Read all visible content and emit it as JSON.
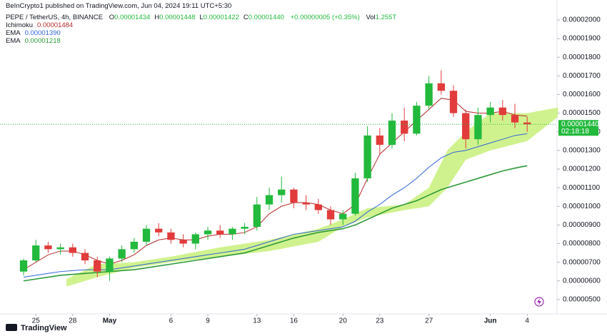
{
  "chart_data": {
    "type": "candlestick",
    "publisher": "BeInCrypto1 published on TradingView.com, Jun 04, 2024 19:11 UTC+5:30",
    "symbol": "PEPE / TetherUS, 4h, BINANCE",
    "ohlc_legend": [
      {
        "label": "O",
        "value": "0.00001434"
      },
      {
        "label": "H",
        "value": "0.00001448"
      },
      {
        "label": "L",
        "value": "0.00001422"
      },
      {
        "label": "C",
        "value": "0.00001440"
      }
    ],
    "change": "+0.00000005 (+0.35%)",
    "volume_label": "Vol",
    "volume": "1.255T",
    "price_label": "0.00001440",
    "countdown": "02:18:18",
    "footer": "TradingView",
    "up_color": "#22b93c",
    "down_color": "#e23b3b",
    "x": [
      0,
      1,
      2,
      3,
      4,
      5,
      6,
      7,
      8,
      9,
      10,
      11,
      12,
      13,
      14,
      15,
      16,
      17,
      18,
      19,
      20,
      21,
      22,
      23,
      24,
      25,
      26,
      27,
      28,
      29,
      30,
      31,
      32,
      33,
      34,
      35,
      36,
      37,
      38,
      39,
      40,
      41
    ],
    "open": [
      6.5e-06,
      7.1e-06,
      7.9e-06,
      7.7e-06,
      7.8e-06,
      7.5e-06,
      7.1e-06,
      6.5e-06,
      7.2e-06,
      7.7e-06,
      8.1e-06,
      8.8e-06,
      8.6e-06,
      8.2e-06,
      8e-06,
      8.5e-06,
      8.7e-06,
      8.5e-06,
      8.8e-06,
      8.9e-06,
      1.01e-05,
      1.06e-05,
      1.09e-05,
      1.02e-05,
      1.01e-05,
      9.8e-06,
      9.3e-06,
      9.6e-06,
      1.15e-05,
      1.38e-05,
      1.33e-05,
      1.46e-05,
      1.39e-05,
      1.54e-05,
      1.66e-05,
      1.62e-05,
      1.5e-05,
      1.36e-05,
      1.49e-05,
      1.53e-05,
      1.49e-05,
      1.45e-05
    ],
    "high": [
      7.2e-06,
      8.2e-06,
      8.1e-06,
      8e-06,
      8e-06,
      7.7e-06,
      7.3e-06,
      7.3e-06,
      7.9e-06,
      8.3e-06,
      9e-06,
      9.1e-06,
      8.8e-06,
      8.5e-06,
      8.6e-06,
      8.9e-06,
      9e-06,
      8.9e-06,
      9.1e-06,
      1.05e-05,
      1.1e-05,
      1.16e-05,
      1.1e-05,
      1.06e-05,
      1.04e-05,
      1e-05,
      9.8e-06,
      1.18e-05,
      1.43e-05,
      1.42e-05,
      1.5e-05,
      1.53e-05,
      1.56e-05,
      1.7e-05,
      1.73e-05,
      1.65e-05,
      1.52e-05,
      1.53e-05,
      1.56e-05,
      1.57e-05,
      1.55e-05,
      1.48e-05
    ],
    "low": [
      6.3e-06,
      7e-06,
      7.5e-06,
      7.4e-06,
      7.3e-06,
      6.9e-06,
      6.2e-06,
      6e-06,
      7e-06,
      7.5e-06,
      7.9e-06,
      8.4e-06,
      8e-06,
      7.8e-06,
      7.7e-06,
      8.2e-06,
      8.3e-06,
      8.2e-06,
      8.5e-06,
      8.7e-06,
      9.8e-06,
      1.02e-05,
      9.9e-06,
      9.8e-06,
      9.6e-06,
      9e-06,
      9e-06,
      9.5e-06,
      1.13e-05,
      1.28e-05,
      1.31e-05,
      1.35e-05,
      1.38e-05,
      1.52e-05,
      1.6e-05,
      1.48e-05,
      1.31e-05,
      1.33e-05,
      1.45e-05,
      1.46e-05,
      1.42e-05,
      1.4e-05
    ],
    "close": [
      7.1e-06,
      7.9e-06,
      7.7e-06,
      7.8e-06,
      7.5e-06,
      7.1e-06,
      6.5e-06,
      7.2e-06,
      7.7e-06,
      8.1e-06,
      8.8e-06,
      8.6e-06,
      8.2e-06,
      8e-06,
      8.5e-06,
      8.7e-06,
      8.5e-06,
      8.8e-06,
      8.9e-06,
      1.01e-05,
      1.06e-05,
      1.09e-05,
      1.02e-05,
      1.01e-05,
      9.8e-06,
      9.3e-06,
      9.6e-06,
      1.15e-05,
      1.38e-05,
      1.33e-05,
      1.46e-05,
      1.39e-05,
      1.54e-05,
      1.66e-05,
      1.62e-05,
      1.5e-05,
      1.36e-05,
      1.49e-05,
      1.53e-05,
      1.49e-05,
      1.45e-05,
      1.44e-05
    ],
    "series": [
      {
        "name": "Ichimoku",
        "legend_value": "0.00001484",
        "color": "#b52a2a",
        "values": [
          6.6e-06,
          7e-06,
          7.4e-06,
          7.6e-06,
          7.6e-06,
          7.4e-06,
          7.1e-06,
          6.9e-06,
          7.1e-06,
          7.4e-06,
          7.9e-06,
          8.2e-06,
          8.3e-06,
          8.2e-06,
          8.2e-06,
          8.4e-06,
          8.5e-06,
          8.5e-06,
          8.6e-06,
          8.9e-06,
          9.6e-06,
          1e-05,
          1.02e-05,
          1.02e-05,
          1.01e-05,
          9.8e-06,
          9.6e-06,
          1.01e-05,
          1.15e-05,
          1.28e-05,
          1.34e-05,
          1.4e-05,
          1.46e-05,
          1.52e-05,
          1.58e-05,
          1.57e-05,
          1.51e-05,
          1.5e-05,
          1.5e-05,
          1.51e-05,
          1.49e-05,
          1.484e-05
        ]
      },
      {
        "name": "EMA",
        "legend_value": "0.00001390",
        "color": "#2f63d6",
        "values": [
          6.2e-06,
          6.3e-06,
          6.4e-06,
          6.5e-06,
          6.55e-06,
          6.6e-06,
          6.6e-06,
          6.6e-06,
          6.7e-06,
          6.8e-06,
          6.9e-06,
          7e-06,
          7.1e-06,
          7.2e-06,
          7.3e-06,
          7.4e-06,
          7.5e-06,
          7.6e-06,
          7.7e-06,
          7.9e-06,
          8.1e-06,
          8.3e-06,
          8.5e-06,
          8.6e-06,
          8.7e-06,
          8.8e-06,
          8.9e-06,
          9.2e-06,
          9.7e-06,
          1.01e-05,
          1.06e-05,
          1.1e-05,
          1.15e-05,
          1.21e-05,
          1.26e-05,
          1.29e-05,
          1.3e-05,
          1.32e-05,
          1.34e-05,
          1.36e-05,
          1.38e-05,
          1.39e-05
        ]
      },
      {
        "name": "EMA",
        "legend_value": "0.00001218",
        "color": "#2e9a3a",
        "values": [
          6e-06,
          6.1e-06,
          6.2e-06,
          6.3e-06,
          6.35e-06,
          6.4e-06,
          6.45e-06,
          6.5e-06,
          6.55e-06,
          6.6e-06,
          6.7e-06,
          6.8e-06,
          6.9e-06,
          7e-06,
          7.1e-06,
          7.2e-06,
          7.3e-06,
          7.4e-06,
          7.5e-06,
          7.7e-06,
          7.9e-06,
          8.1e-06,
          8.3e-06,
          8.45e-06,
          8.6e-06,
          8.7e-06,
          8.8e-06,
          9e-06,
          9.3e-06,
          9.6e-06,
          9.9e-06,
          1.01e-05,
          1.03e-05,
          1.06e-05,
          1.09e-05,
          1.11e-05,
          1.13e-05,
          1.15e-05,
          1.17e-05,
          1.19e-05,
          1.205e-05,
          1.218e-05
        ]
      }
    ],
    "cloud": {
      "color": "#c8f07a",
      "x": [
        3.5,
        6,
        9,
        12,
        16,
        20,
        24,
        26,
        28,
        31,
        33,
        34.5,
        36,
        38,
        41,
        43.5
      ],
      "lower": [
        5.7e-06,
        6.2e-06,
        6.7e-06,
        7e-06,
        7.3e-06,
        7.6e-06,
        8.1e-06,
        8.9e-06,
        9.4e-06,
        9.8e-06,
        1e-05,
        1.1e-05,
        1.25e-05,
        1.3e-05,
        1.35e-05,
        1.48e-05
      ],
      "upper": [
        6.1e-06,
        6.9e-06,
        7e-06,
        7.3e-06,
        7.8e-06,
        8.2e-06,
        8.8e-06,
        9.3e-06,
        9.9e-06,
        1.01e-05,
        1.1e-05,
        1.3e-05,
        1.4e-05,
        1.5e-05,
        1.5e-05,
        1.53e-05
      ]
    },
    "xlim": [
      -1.92,
      43.43
    ],
    "xticks": [
      {
        "value": 1,
        "label": "25"
      },
      {
        "value": 4,
        "label": "28"
      },
      {
        "value": 7,
        "label": "May"
      },
      {
        "value": 12,
        "label": "6"
      },
      {
        "value": 15,
        "label": "9"
      },
      {
        "value": 19,
        "label": "13"
      },
      {
        "value": 22,
        "label": "16"
      },
      {
        "value": 26,
        "label": "20"
      },
      {
        "value": 29,
        "label": "23"
      },
      {
        "value": 33,
        "label": "27"
      },
      {
        "value": 38,
        "label": "Jun"
      },
      {
        "value": 41,
        "label": "4"
      }
    ],
    "ylim": [
      4.23e-06,
      2.107e-05
    ],
    "yticks": [
      {
        "value": 5e-06,
        "label": "0.00000500"
      },
      {
        "value": 6e-06,
        "label": "0.00000600"
      },
      {
        "value": 7e-06,
        "label": "0.00000700"
      },
      {
        "value": 8e-06,
        "label": "0.00000800"
      },
      {
        "value": 9e-06,
        "label": "0.00000900"
      },
      {
        "value": 1e-05,
        "label": "0.00001000"
      },
      {
        "value": 1.1e-05,
        "label": "0.00001100"
      },
      {
        "value": 1.2e-05,
        "label": "0.00001200"
      },
      {
        "value": 1.3e-05,
        "label": "0.00001300"
      },
      {
        "value": 1.4e-05,
        "label": "0.00001400"
      },
      {
        "value": 1.5e-05,
        "label": "0.00001500"
      },
      {
        "value": 1.6e-05,
        "label": "0.00001600"
      },
      {
        "value": 1.7e-05,
        "label": "0.00001700"
      },
      {
        "value": 1.8e-05,
        "label": "0.00001800"
      },
      {
        "value": 1.9e-05,
        "label": "0.00001900"
      },
      {
        "value": 2e-05,
        "label": "0.00002000"
      }
    ],
    "grid": false
  }
}
